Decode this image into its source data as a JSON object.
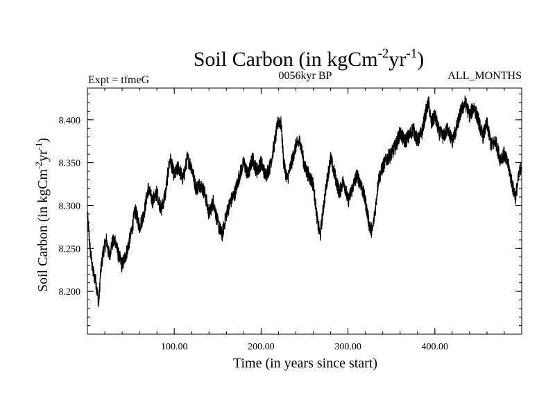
{
  "chart_data": {
    "type": "line",
    "title_main": "Soil Carbon (in kgCm",
    "title_sup1": "-2",
    "title_mid": "yr",
    "title_sup2": "-1",
    "title_end": ")",
    "left_label": "Expt = tfmeG",
    "center_label": "0056kyr BP",
    "right_label": "ALL_MONTHS",
    "xlabel": "Time (in years since start)",
    "ylabel_main": "Soil Carbon (in kgCm",
    "ylabel_sup1": "-2",
    "ylabel_mid": "yr",
    "ylabel_sup2": "-1",
    "ylabel_end": ")",
    "xlim": [
      0,
      500
    ],
    "ylim": [
      8.15,
      8.437
    ],
    "xticks": [
      {
        "value": 100,
        "label": "100.00"
      },
      {
        "value": 200,
        "label": "200.00"
      },
      {
        "value": 300,
        "label": "300.00"
      },
      {
        "value": 400,
        "label": "400.00"
      }
    ],
    "yticks": [
      {
        "value": 8.2,
        "label": "8.200"
      },
      {
        "value": 8.25,
        "label": "8.250"
      },
      {
        "value": 8.3,
        "label": "8.300"
      },
      {
        "value": 8.35,
        "label": "8.350"
      },
      {
        "value": 8.4,
        "label": "8.400"
      }
    ],
    "series": [
      {
        "name": "Soil Carbon",
        "color": "#000000",
        "x": [
          0,
          3,
          6,
          10,
          13,
          15,
          18,
          22,
          25,
          28,
          32,
          35,
          40,
          45,
          50,
          55,
          60,
          65,
          70,
          75,
          80,
          85,
          90,
          95,
          100,
          105,
          110,
          115,
          120,
          125,
          130,
          135,
          140,
          145,
          150,
          155,
          160,
          165,
          170,
          175,
          180,
          185,
          190,
          195,
          200,
          205,
          210,
          215,
          220,
          223,
          226,
          230,
          235,
          240,
          245,
          250,
          255,
          260,
          265,
          268,
          272,
          276,
          280,
          285,
          290,
          295,
          300,
          305,
          310,
          315,
          320,
          325,
          328,
          332,
          335,
          340,
          345,
          350,
          355,
          360,
          365,
          370,
          375,
          380,
          385,
          390,
          393,
          396,
          400,
          405,
          410,
          415,
          420,
          425,
          430,
          435,
          440,
          445,
          450,
          455,
          460,
          465,
          470,
          475,
          480,
          485,
          490,
          493,
          496,
          500
        ],
        "y": [
          8.29,
          8.25,
          8.225,
          8.21,
          8.185,
          8.22,
          8.245,
          8.26,
          8.24,
          8.255,
          8.26,
          8.245,
          8.23,
          8.245,
          8.265,
          8.295,
          8.275,
          8.29,
          8.32,
          8.305,
          8.315,
          8.295,
          8.315,
          8.355,
          8.335,
          8.345,
          8.33,
          8.355,
          8.345,
          8.32,
          8.325,
          8.315,
          8.29,
          8.305,
          8.28,
          8.265,
          8.29,
          8.305,
          8.315,
          8.335,
          8.35,
          8.335,
          8.355,
          8.34,
          8.35,
          8.335,
          8.345,
          8.37,
          8.4,
          8.395,
          8.35,
          8.33,
          8.35,
          8.37,
          8.375,
          8.345,
          8.335,
          8.325,
          8.28,
          8.265,
          8.3,
          8.33,
          8.355,
          8.335,
          8.315,
          8.33,
          8.305,
          8.32,
          8.335,
          8.325,
          8.305,
          8.275,
          8.27,
          8.3,
          8.33,
          8.345,
          8.355,
          8.36,
          8.37,
          8.385,
          8.375,
          8.38,
          8.39,
          8.375,
          8.385,
          8.41,
          8.42,
          8.395,
          8.405,
          8.385,
          8.38,
          8.39,
          8.375,
          8.39,
          8.41,
          8.42,
          8.405,
          8.415,
          8.4,
          8.38,
          8.395,
          8.37,
          8.375,
          8.355,
          8.36,
          8.345,
          8.32,
          8.31,
          8.33,
          8.35
        ]
      }
    ]
  }
}
